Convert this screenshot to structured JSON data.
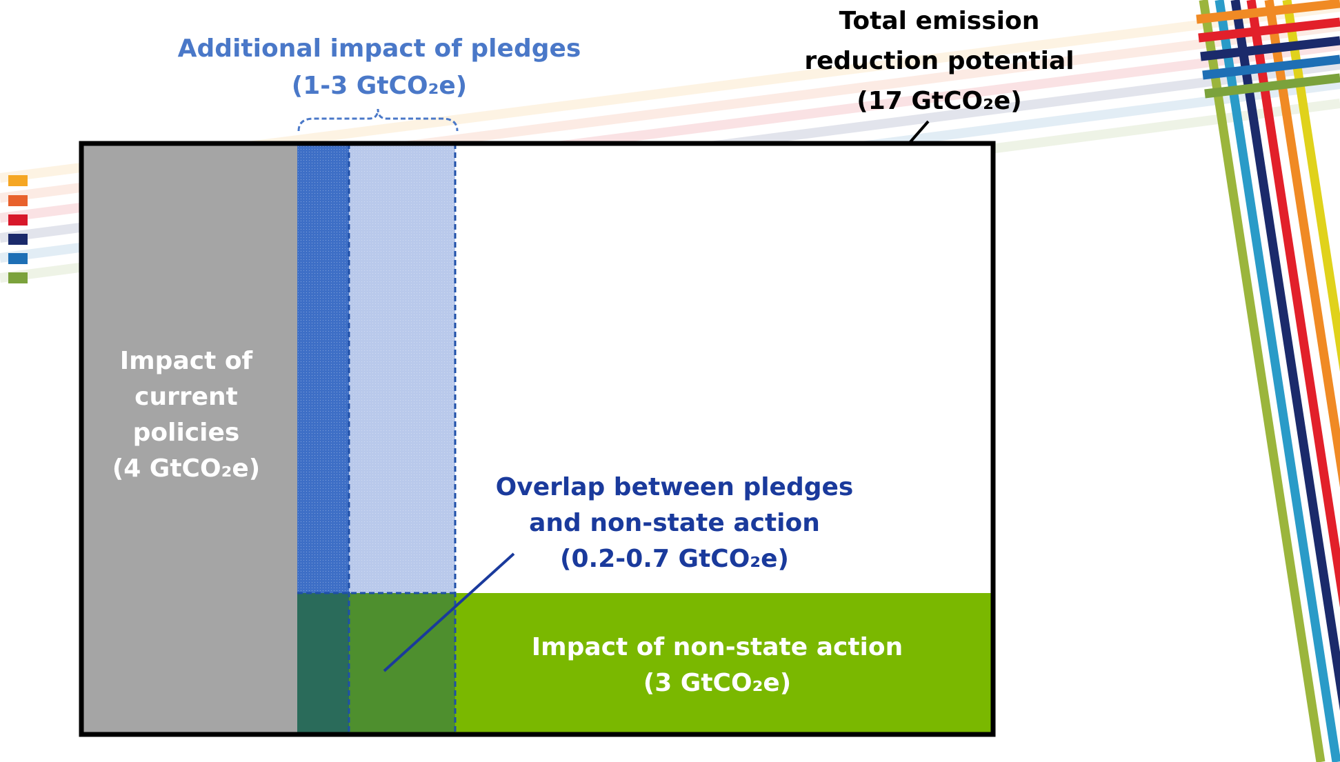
{
  "total": {
    "lines": [
      "Total emission",
      "reduction potential",
      "(17 GtCO₂e)"
    ]
  },
  "pledges": {
    "lines": [
      "Additional impact of pledges",
      "(1-3 GtCO₂e)"
    ]
  },
  "current_policies": {
    "lines": [
      "Impact of",
      "current",
      "policies",
      "(4 GtCO₂e)"
    ]
  },
  "overlap": {
    "lines": [
      "Overlap between pledges",
      "and non-state action",
      "(0.2-0.7 GtCO₂e)"
    ]
  },
  "non_state": {
    "lines": [
      "Impact of non-state action",
      "(3 GtCO₂e)"
    ]
  }
}
